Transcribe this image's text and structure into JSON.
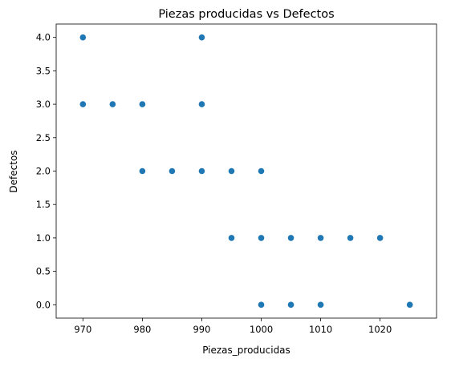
{
  "chart_data": {
    "type": "scatter",
    "title": "Piezas producidas vs Defectos",
    "xlabel": "Piezas_producidas",
    "ylabel": "Defectos",
    "xlim": [
      965.5,
      1029.5
    ],
    "ylim": [
      -0.2,
      4.2
    ],
    "x_ticks": [
      970,
      980,
      990,
      1000,
      1010,
      1020
    ],
    "x_tick_labels": [
      "970",
      "980",
      "990",
      "1000",
      "1010",
      "1020"
    ],
    "y_ticks": [
      0,
      0.5,
      1,
      1.5,
      2,
      2.5,
      3,
      3.5,
      4
    ],
    "y_tick_labels": [
      "0.0",
      "0.5",
      "1.0",
      "1.5",
      "2.0",
      "2.5",
      "3.0",
      "3.5",
      "4.0"
    ],
    "grid": false,
    "legend": "none",
    "marker_color": "#1f77b4",
    "points": [
      {
        "x": 970,
        "y": 4
      },
      {
        "x": 990,
        "y": 4
      },
      {
        "x": 970,
        "y": 3
      },
      {
        "x": 975,
        "y": 3
      },
      {
        "x": 980,
        "y": 3
      },
      {
        "x": 990,
        "y": 3
      },
      {
        "x": 980,
        "y": 2
      },
      {
        "x": 985,
        "y": 2
      },
      {
        "x": 990,
        "y": 2
      },
      {
        "x": 995,
        "y": 2
      },
      {
        "x": 1000,
        "y": 2
      },
      {
        "x": 995,
        "y": 1
      },
      {
        "x": 1000,
        "y": 1
      },
      {
        "x": 1005,
        "y": 1
      },
      {
        "x": 1010,
        "y": 1
      },
      {
        "x": 1015,
        "y": 1
      },
      {
        "x": 1020,
        "y": 1
      },
      {
        "x": 1000,
        "y": 0
      },
      {
        "x": 1005,
        "y": 0
      },
      {
        "x": 1010,
        "y": 0
      },
      {
        "x": 1025,
        "y": 0
      }
    ]
  }
}
